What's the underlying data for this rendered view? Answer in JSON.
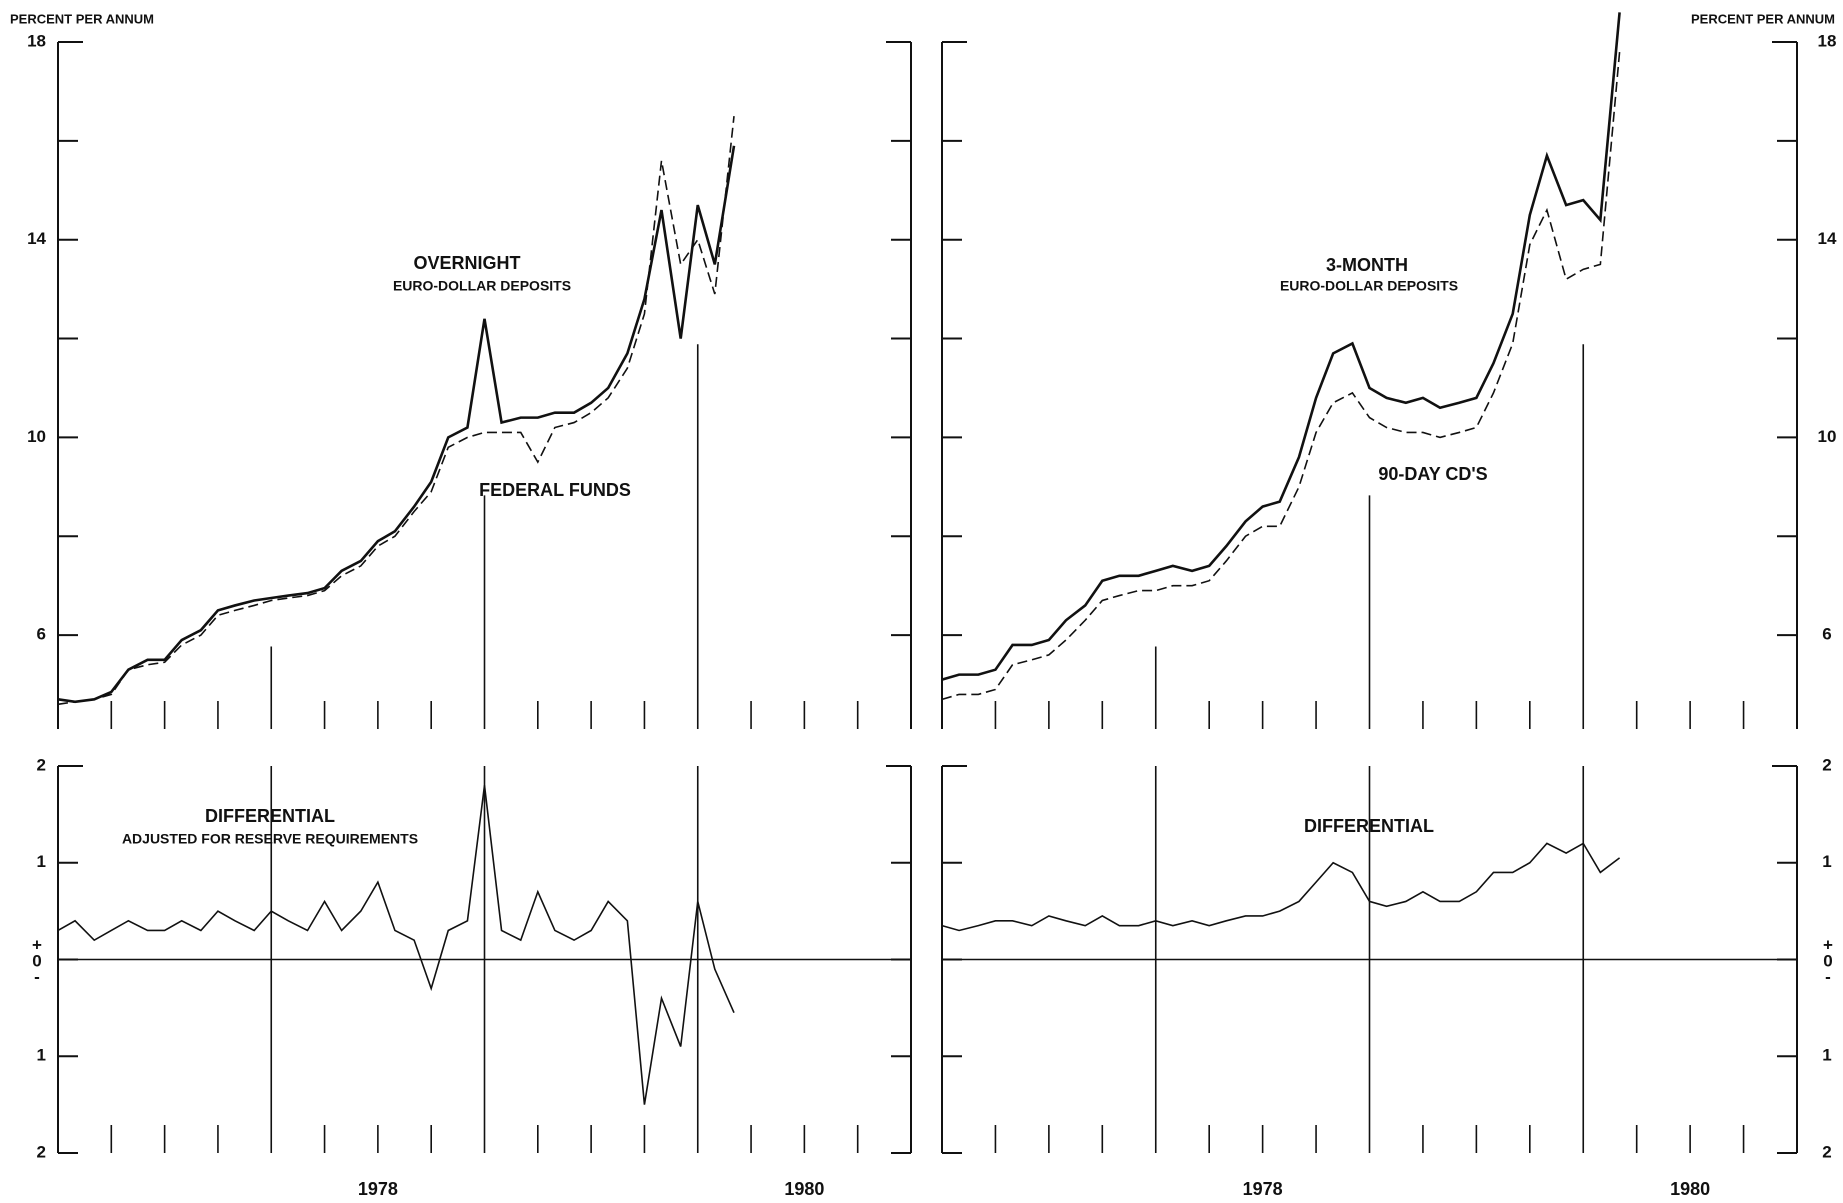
{
  "chart_data": [
    {
      "type": "line",
      "axis_title": "PERCENT PER ANNUM",
      "ylabel_side": "left",
      "x": [
        1977,
        1977.08,
        1977.17,
        1977.25,
        1977.33,
        1977.42,
        1977.5,
        1977.58,
        1977.67,
        1977.75,
        1977.83,
        1977.92,
        1978,
        1978.08,
        1978.17,
        1978.25,
        1978.33,
        1978.42,
        1978.5,
        1978.58,
        1978.67,
        1978.75,
        1978.83,
        1978.92,
        1979,
        1979.08,
        1979.17,
        1979.25,
        1979.33,
        1979.42,
        1979.5,
        1979.58,
        1979.67,
        1979.75,
        1979.83,
        1979.92,
        1980,
        1980.08,
        1980.17
      ],
      "series": [
        {
          "name": "OVERNIGHT",
          "note": "EURO-DOLLAR DEPOSITS",
          "color": "#111111",
          "dashed": false,
          "values": [
            4.7,
            4.65,
            4.7,
            4.85,
            5.3,
            5.5,
            5.5,
            5.9,
            6.1,
            6.5,
            6.6,
            6.7,
            6.75,
            6.8,
            6.85,
            6.95,
            7.3,
            7.5,
            7.9,
            8.1,
            8.6,
            9.1,
            10.0,
            10.2,
            12.4,
            10.3,
            10.4,
            10.4,
            10.5,
            10.5,
            10.7,
            11.0,
            11.7,
            12.8,
            14.6,
            12.0,
            14.7,
            13.5,
            15.9
          ]
        },
        {
          "name": "FEDERAL FUNDS",
          "color": "#111111",
          "dashed": true,
          "values": [
            4.6,
            4.65,
            4.7,
            4.8,
            5.3,
            5.4,
            5.45,
            5.8,
            6.0,
            6.4,
            6.5,
            6.6,
            6.7,
            6.75,
            6.8,
            6.9,
            7.2,
            7.4,
            7.8,
            8.0,
            8.5,
            8.9,
            9.8,
            10.0,
            10.1,
            10.1,
            10.1,
            9.5,
            10.2,
            10.3,
            10.5,
            10.8,
            11.4,
            12.5,
            15.6,
            13.5,
            14.0,
            12.9,
            16.5
          ]
        }
      ],
      "xlim": [
        1977,
        1981
      ],
      "ylim": [
        4.1,
        18
      ],
      "yticks": [
        6,
        10,
        14,
        18
      ],
      "yminor": [
        8,
        12,
        16
      ],
      "year_lines": [
        1978,
        1979,
        1980
      ],
      "xminor": [
        1977.25,
        1977.5,
        1977.75,
        1978.25,
        1978.5,
        1978.75,
        1979.25,
        1979.5,
        1979.75,
        1980.25,
        1980.5,
        1980.75
      ]
    },
    {
      "type": "line",
      "axis_title": "PERCENT PER ANNUM",
      "ylabel_side": "right",
      "x": [
        1977,
        1977.08,
        1977.17,
        1977.25,
        1977.33,
        1977.42,
        1977.5,
        1977.58,
        1977.67,
        1977.75,
        1977.83,
        1977.92,
        1978,
        1978.08,
        1978.17,
        1978.25,
        1978.33,
        1978.42,
        1978.5,
        1978.58,
        1978.67,
        1978.75,
        1978.83,
        1978.92,
        1979,
        1979.08,
        1979.17,
        1979.25,
        1979.33,
        1979.42,
        1979.5,
        1979.58,
        1979.67,
        1979.75,
        1979.83,
        1979.92,
        1980,
        1980.08,
        1980.17
      ],
      "series": [
        {
          "name": "3-MONTH",
          "note": "EURO-DOLLAR DEPOSITS",
          "color": "#111111",
          "dashed": false,
          "values": [
            5.1,
            5.2,
            5.2,
            5.3,
            5.8,
            5.8,
            5.9,
            6.3,
            6.6,
            7.1,
            7.2,
            7.2,
            7.3,
            7.4,
            7.3,
            7.4,
            7.8,
            8.3,
            8.6,
            8.7,
            9.6,
            10.8,
            11.7,
            11.9,
            11.0,
            10.8,
            10.7,
            10.8,
            10.6,
            10.7,
            10.8,
            11.5,
            12.5,
            14.5,
            15.7,
            14.7,
            14.8,
            14.4,
            18.6
          ]
        },
        {
          "name": "90-DAY CD'S",
          "color": "#111111",
          "dashed": true,
          "values": [
            4.7,
            4.8,
            4.8,
            4.9,
            5.4,
            5.5,
            5.6,
            5.9,
            6.3,
            6.7,
            6.8,
            6.9,
            6.9,
            7.0,
            7.0,
            7.1,
            7.5,
            8.0,
            8.2,
            8.2,
            9.0,
            10.1,
            10.7,
            10.9,
            10.4,
            10.2,
            10.1,
            10.1,
            10.0,
            10.1,
            10.2,
            10.9,
            11.9,
            13.9,
            14.6,
            13.2,
            13.4,
            13.5,
            17.8
          ]
        }
      ],
      "xlim": [
        1977,
        1981
      ],
      "ylim": [
        4.1,
        18
      ],
      "yticks": [
        6,
        10,
        14,
        18
      ],
      "yminor": [
        8,
        12,
        16
      ],
      "year_lines": [
        1978,
        1979,
        1980
      ],
      "xminor": [
        1977.25,
        1977.5,
        1977.75,
        1978.25,
        1978.5,
        1978.75,
        1979.25,
        1979.5,
        1979.75,
        1980.25,
        1980.5,
        1980.75
      ]
    },
    {
      "type": "line",
      "ylabel_side": "left",
      "x": [
        1977,
        1977.08,
        1977.17,
        1977.25,
        1977.33,
        1977.42,
        1977.5,
        1977.58,
        1977.67,
        1977.75,
        1977.83,
        1977.92,
        1978,
        1978.08,
        1978.17,
        1978.25,
        1978.33,
        1978.42,
        1978.5,
        1978.58,
        1978.67,
        1978.75,
        1978.83,
        1978.92,
        1979,
        1979.08,
        1979.17,
        1979.25,
        1979.33,
        1979.42,
        1979.5,
        1979.58,
        1979.67,
        1979.75,
        1979.83,
        1979.92,
        1980,
        1980.08,
        1980.17
      ],
      "series": [
        {
          "name": "DIFFERENTIAL",
          "note": "ADJUSTED FOR RESERVE REQUIREMENTS",
          "color": "#111111",
          "dashed": false,
          "values": [
            0.3,
            0.4,
            0.2,
            0.3,
            0.4,
            0.3,
            0.3,
            0.4,
            0.3,
            0.5,
            0.4,
            0.3,
            0.5,
            0.4,
            0.3,
            0.6,
            0.3,
            0.5,
            0.8,
            0.3,
            0.2,
            -0.3,
            0.3,
            0.4,
            1.8,
            0.3,
            0.2,
            0.7,
            0.3,
            0.2,
            0.3,
            0.6,
            0.4,
            -1.5,
            -0.4,
            -0.9,
            0.6,
            -0.1,
            -0.55
          ]
        }
      ],
      "xlim": [
        1977,
        1981
      ],
      "ylim": [
        -2,
        2
      ],
      "yticks": [
        {
          "value": 2,
          "label": "2"
        },
        {
          "value": 1,
          "label": "1"
        },
        {
          "value": 0,
          "label": "+0-"
        },
        {
          "value": -1,
          "label": "1"
        },
        {
          "value": -2,
          "label": "2"
        }
      ],
      "xticks": [
        {
          "value": 1978.5,
          "label": "1978"
        },
        {
          "value": 1980.5,
          "label": "1980"
        }
      ],
      "year_lines": [
        1978,
        1979,
        1980
      ],
      "xminor": [
        1977.25,
        1977.5,
        1977.75,
        1978.25,
        1978.5,
        1978.75,
        1979.25,
        1979.5,
        1979.75,
        1980.25,
        1980.5,
        1980.75
      ]
    },
    {
      "type": "line",
      "ylabel_side": "right",
      "x": [
        1977,
        1977.08,
        1977.17,
        1977.25,
        1977.33,
        1977.42,
        1977.5,
        1977.58,
        1977.67,
        1977.75,
        1977.83,
        1977.92,
        1978,
        1978.08,
        1978.17,
        1978.25,
        1978.33,
        1978.42,
        1978.5,
        1978.58,
        1978.67,
        1978.75,
        1978.83,
        1978.92,
        1979,
        1979.08,
        1979.17,
        1979.25,
        1979.33,
        1979.42,
        1979.5,
        1979.58,
        1979.67,
        1979.75,
        1979.83,
        1979.92,
        1980,
        1980.08,
        1980.17
      ],
      "series": [
        {
          "name": "DIFFERENTIAL",
          "color": "#111111",
          "dashed": false,
          "values": [
            0.35,
            0.3,
            0.35,
            0.4,
            0.4,
            0.35,
            0.45,
            0.4,
            0.35,
            0.45,
            0.35,
            0.35,
            0.4,
            0.35,
            0.4,
            0.35,
            0.4,
            0.45,
            0.45,
            0.5,
            0.6,
            0.8,
            1.0,
            0.9,
            0.6,
            0.55,
            0.6,
            0.7,
            0.6,
            0.6,
            0.7,
            0.9,
            0.9,
            1.0,
            1.2,
            1.1,
            1.2,
            0.9,
            1.05
          ]
        }
      ],
      "xlim": [
        1977,
        1981
      ],
      "ylim": [
        -2,
        2
      ],
      "yticks": [
        {
          "value": 2,
          "label": "2"
        },
        {
          "value": 1,
          "label": "1"
        },
        {
          "value": 0,
          "label": "+0-"
        },
        {
          "value": -1,
          "label": "1"
        },
        {
          "value": -2,
          "label": "2"
        }
      ],
      "xticks": [
        {
          "value": 1978.5,
          "label": "1978"
        },
        {
          "value": 1980.5,
          "label": "1980"
        }
      ],
      "year_lines": [
        1978,
        1979,
        1980
      ],
      "xminor": [
        1977.25,
        1977.5,
        1977.75,
        1978.25,
        1978.5,
        1978.75,
        1979.25,
        1979.5,
        1979.75,
        1980.25,
        1980.5,
        1980.75
      ]
    }
  ]
}
